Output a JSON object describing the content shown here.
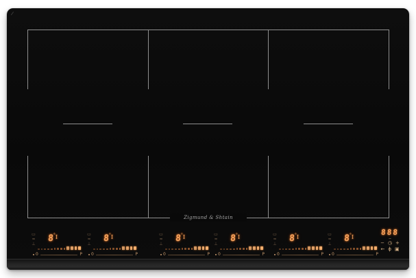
{
  "cooktop": {
    "body_color": "#0b0b0b",
    "accent_color": "#f2a25e",
    "zone_line_color": "#8f8f8f",
    "brand_logo": "Zigmund & Shtain"
  },
  "panel_display": {
    "digit": "8",
    "degree_mark": "°",
    "bar_mark": "I",
    "min_label": "0",
    "max_label": "P",
    "bar_segments": 13,
    "bright_segments": 4,
    "icons": {
      "bridge": "▭",
      "keep_warm": "≈",
      "pan": "⊥"
    }
  },
  "panels": [
    {
      "name": "zone-rear-left"
    },
    {
      "name": "zone-front-left"
    },
    {
      "name": "zone-rear-center"
    },
    {
      "name": "zone-front-center"
    },
    {
      "name": "zone-rear-right"
    },
    {
      "name": "zone-front-right"
    }
  ],
  "timer": {
    "digits": "888",
    "dash": "‒",
    "minus": "−",
    "clock": "◷",
    "plus": "+",
    "lock": "←",
    "power": "ϕ",
    "pause": "▣"
  }
}
